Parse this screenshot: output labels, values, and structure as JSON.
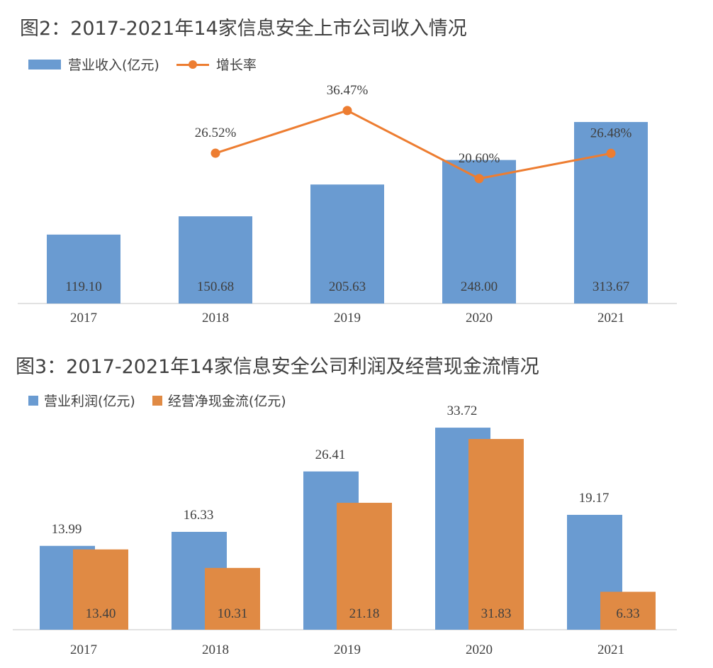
{
  "chart1": {
    "title": "图2：2017-2021年14家信息安全上市公司收入情况",
    "legend": {
      "bar": "营业收入(亿元)",
      "line": "增长率"
    },
    "colors": {
      "bar": "#6A9BD1",
      "line": "#ED7D31"
    }
  },
  "chart2": {
    "title": "图3：2017-2021年14家信息安全公司利润及经营现金流情况",
    "legend": {
      "s1": "营业利润(亿元)",
      "s2": "经营净现金流(亿元)"
    },
    "colors": {
      "s1": "#6A9BD1",
      "s2": "#E08A44"
    }
  },
  "chart_data": [
    {
      "type": "bar",
      "title": "图2：2017-2021年14家信息安全上市公司收入情况",
      "categories": [
        "2017",
        "2018",
        "2019",
        "2020",
        "2021"
      ],
      "series": [
        {
          "name": "营业收入(亿元)",
          "type": "bar",
          "values": [
            119.1,
            150.68,
            205.63,
            248.0,
            313.67
          ],
          "labels": [
            "119.10",
            "150.68",
            "205.63",
            "248.00",
            "313.67"
          ]
        },
        {
          "name": "增长率",
          "type": "line",
          "values": [
            null,
            26.52,
            36.47,
            20.6,
            26.48
          ],
          "labels": [
            "",
            "26.52%",
            "36.47%",
            "20.60%",
            "26.48%"
          ]
        }
      ],
      "legend_position": "top-left",
      "grid": false
    },
    {
      "type": "bar",
      "title": "图3：2017-2021年14家信息安全公司利润及经营现金流情况",
      "categories": [
        "2017",
        "2018",
        "2019",
        "2020",
        "2021"
      ],
      "series": [
        {
          "name": "营业利润(亿元)",
          "values": [
            13.99,
            16.33,
            26.41,
            33.72,
            19.17
          ],
          "labels": [
            "13.99",
            "16.33",
            "26.41",
            "33.72",
            "19.17"
          ]
        },
        {
          "name": "经营净现金流(亿元)",
          "values": [
            13.4,
            10.31,
            21.18,
            31.83,
            6.33
          ],
          "labels": [
            "13.40",
            "10.31",
            "21.18",
            "31.83",
            "6.33"
          ]
        }
      ],
      "legend_position": "top-left",
      "grid": false
    }
  ]
}
